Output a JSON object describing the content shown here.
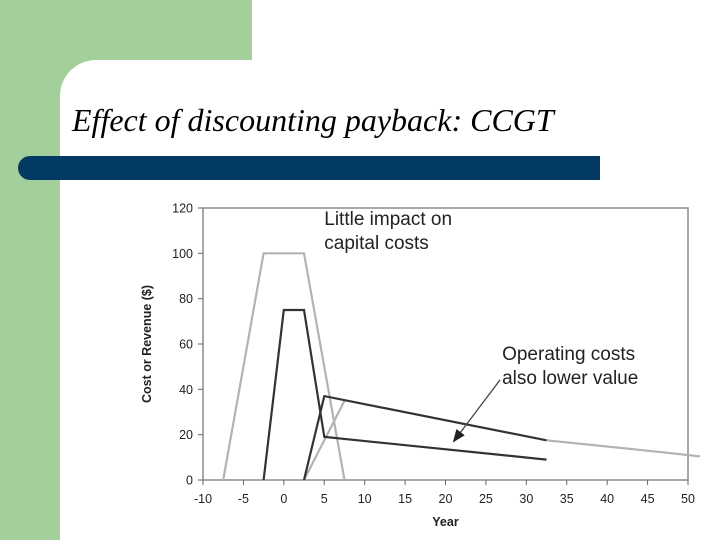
{
  "slide": {
    "title": "Effect of discounting payback: CCGT"
  },
  "colors": {
    "green_block": "#a3d09a",
    "title_bar": "#023a63",
    "undiscounted_series": "#b3b3b3",
    "discounted_series": "#333333"
  },
  "chart_data": {
    "type": "line",
    "title": "",
    "xlabel": "Year",
    "ylabel": "Cost or Revenue ($)",
    "xlim": [
      -10,
      50
    ],
    "ylim": [
      0,
      120
    ],
    "xticks": [
      -10,
      -5,
      0,
      5,
      10,
      15,
      20,
      25,
      30,
      35,
      40,
      45,
      50
    ],
    "yticks": [
      0,
      20,
      40,
      60,
      80,
      100,
      120
    ],
    "grid": false,
    "legend": "none",
    "series": [
      {
        "color": "#b3b3b3",
        "points": [
          [
            -7.5,
            0
          ],
          [
            -2.5,
            100
          ],
          [
            2.5,
            100
          ],
          [
            7.5,
            0
          ]
        ]
      },
      {
        "color": "#b3b3b3",
        "points": [
          [
            2.5,
            0
          ],
          [
            7.5,
            35
          ]
        ]
      },
      {
        "color": "#b3b3b3",
        "points": [
          [
            32.5,
            17.5
          ],
          [
            47.5,
            12
          ],
          [
            52.5,
            10
          ]
        ]
      },
      {
        "color": "#333333",
        "points": [
          [
            -2.5,
            0
          ],
          [
            0,
            75
          ],
          [
            2.5,
            75
          ],
          [
            5,
            19
          ],
          [
            32.5,
            9
          ]
        ]
      },
      {
        "color": "#333333",
        "points": [
          [
            2.5,
            0
          ],
          [
            5,
            37
          ],
          [
            32.5,
            17.5
          ]
        ]
      }
    ],
    "annotations": [
      {
        "lines": [
          "Little impact on",
          "capital costs"
        ],
        "x": 5,
        "y": 112.5
      },
      {
        "lines": [
          "Operating costs",
          "also lower value"
        ],
        "x": 27,
        "y": 53,
        "arrow_to": [
          21,
          17
        ]
      }
    ]
  }
}
